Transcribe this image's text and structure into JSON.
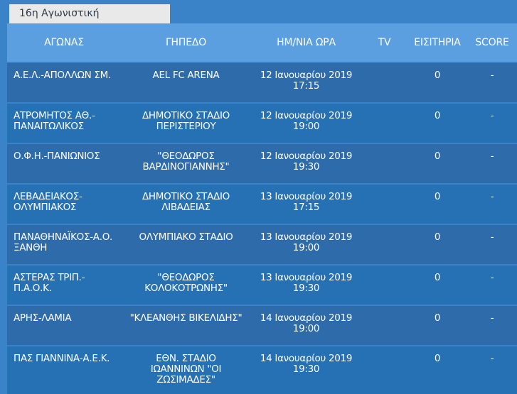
{
  "round_tab": "16η Αγωνιστική",
  "headers": {
    "match": "ΑΓΩΝΑΣ",
    "stadium": "ΓΗΠΕΔΟ",
    "datetime": "ΗΜ/ΝΙΑ ΩΡΑ",
    "tv": "TV",
    "tickets": "ΕΙΣΙΤΗΡΙΑ",
    "score": "SCORE"
  },
  "matches": [
    {
      "match": [
        "Α.Ε.Λ.-ΑΠΟΛΛΩΝ ΣΜ."
      ],
      "stadium": [
        "AEL FC ARENA"
      ],
      "date": "12 Ιανουαρίου 2019",
      "time": "17:15",
      "tv": "",
      "tickets": "0",
      "score": "-"
    },
    {
      "match": [
        "ΑΤΡΟΜΗΤΟΣ ΑΘ.-",
        "ΠΑΝΑΙΤΩΛΙΚΟΣ"
      ],
      "stadium": [
        "ΔΗΜΟΤΙΚΟ ΣΤΑΔΙΟ",
        "ΠΕΡΙΣΤΕΡΙΟΥ"
      ],
      "date": "12 Ιανουαρίου 2019",
      "time": "19:00",
      "tv": "",
      "tickets": "0",
      "score": "-"
    },
    {
      "match": [
        "Ο.Φ.Η.-ΠΑΝΙΩΝΙΟΣ"
      ],
      "stadium": [
        "\"ΘΕΟΔΩΡΟΣ",
        "ΒΑΡΔΙΝΟΓΙΑΝΝΗΣ\""
      ],
      "date": "12 Ιανουαρίου 2019",
      "time": "19:30",
      "tv": "",
      "tickets": "0",
      "score": "-"
    },
    {
      "match": [
        "ΛΕΒΑΔΕΙΑΚΟΣ-",
        "ΟΛΥΜΠΙΑΚΟΣ"
      ],
      "stadium": [
        "ΔΗΜΟΤΙΚΟ ΣΤΑΔΙΟ",
        "ΛΙΒΑΔΕΙΑΣ"
      ],
      "date": "13 Ιανουαρίου 2019",
      "time": "17:15",
      "tv": "",
      "tickets": "0",
      "score": "-"
    },
    {
      "match": [
        "ΠΑΝΑΘΗΝΑΪΚΟΣ-Α.Ο.",
        "ΞΑΝΘΗ"
      ],
      "stadium": [
        "ΟΛΥΜΠΙΑΚΟ ΣΤΑΔΙΟ"
      ],
      "date": "13 Ιανουαρίου 2019",
      "time": "19:00",
      "tv": "",
      "tickets": "0",
      "score": "-"
    },
    {
      "match": [
        "ΑΣΤΕΡΑΣ ΤΡΙΠ.-",
        "Π.Α.Ο.Κ."
      ],
      "stadium": [
        "\"ΘΕΟΔΩΡΟΣ",
        "ΚΟΛΟΚΟΤΡΩΝΗΣ\""
      ],
      "date": "13 Ιανουαρίου 2019",
      "time": "19:30",
      "tv": "",
      "tickets": "0",
      "score": "-"
    },
    {
      "match": [
        "ΑΡΗΣ-ΛΑΜΙΑ"
      ],
      "stadium": [
        "\"ΚΛΕΑΝΘΗΣ ΒΙΚΕΛΙΔΗΣ\""
      ],
      "date": "14 Ιανουαρίου 2019",
      "time": "19:00",
      "tv": "",
      "tickets": "0",
      "score": "-"
    },
    {
      "match": [
        "ΠΑΣ ΓΙΑΝΝΙΝΑ-Α.Ε.Κ."
      ],
      "stadium": [
        "ΕΘΝ. ΣΤΑΔΙΟ",
        "ΙΩΑΝΝΙΝΩΝ \"ΟΙ",
        "ΖΩΣΙΜΑΔΕΣ\""
      ],
      "date": "14 Ιανουαρίου 2019",
      "time": "19:30",
      "tv": "",
      "tickets": "0",
      "score": "-"
    }
  ]
}
